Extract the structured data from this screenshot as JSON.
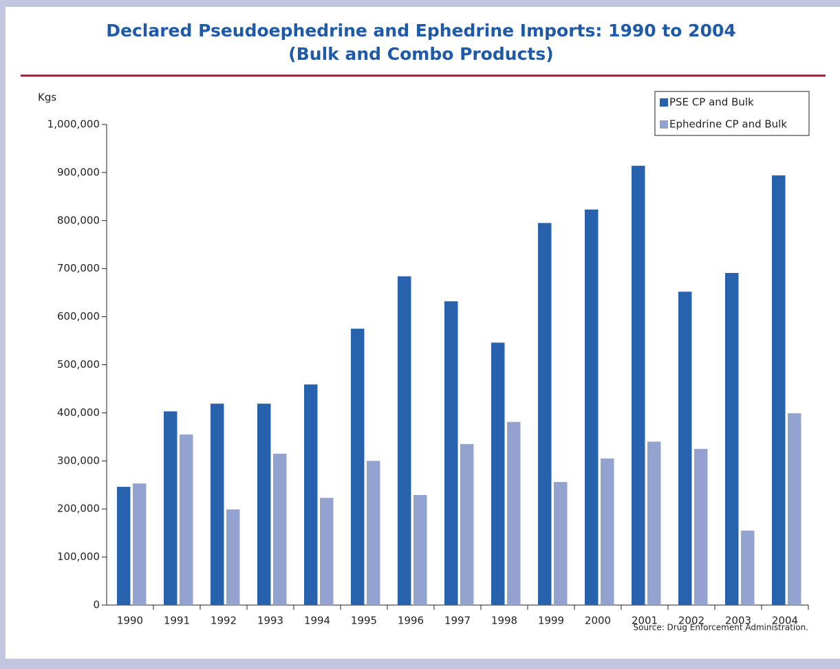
{
  "chart_data": {
    "type": "bar",
    "title": [
      "Declared Pseudoephedrine and Ephedrine Imports: 1990 to 2004",
      "(Bulk and Combo Products)"
    ],
    "y_label": "Kgs",
    "source": "Source: Drug Enforcement Administration.",
    "categories": [
      "1990",
      "1991",
      "1992",
      "1993",
      "1994",
      "1995",
      "1996",
      "1997",
      "1998",
      "1999",
      "2000",
      "2001",
      "2002",
      "2003",
      "2004"
    ],
    "series": [
      {
        "name": "PSE CP and Bulk",
        "color": "#2862ad",
        "values": [
          246000,
          403000,
          419000,
          419000,
          459000,
          575000,
          684000,
          632000,
          546000,
          795000,
          823000,
          914000,
          652000,
          691000,
          894000
        ]
      },
      {
        "name": "Ephedrine CP and Bulk",
        "color": "#93a2cf",
        "values": [
          253000,
          355000,
          199000,
          315000,
          223000,
          300000,
          229000,
          335000,
          381000,
          256000,
          305000,
          340000,
          325000,
          155000,
          399000
        ]
      }
    ],
    "ylim": [
      0,
      1000000
    ],
    "yticks": [
      0,
      {
        "value": 100000,
        "label": "100,000"
      },
      {
        "value": 200000,
        "label": "200,000"
      },
      {
        "value": 300000,
        "label": "300,000"
      },
      {
        "value": 400000,
        "label": "400,000"
      },
      {
        "value": 500000,
        "label": "500,000"
      },
      {
        "value": 600000,
        "label": "600,000"
      },
      {
        "value": 700000,
        "label": "700,000"
      },
      {
        "value": 800000,
        "label": "800,000"
      },
      {
        "value": 900000,
        "label": "900,000"
      },
      {
        "value": 1000000,
        "label": "1,000,000"
      }
    ],
    "legend": "top-right"
  }
}
